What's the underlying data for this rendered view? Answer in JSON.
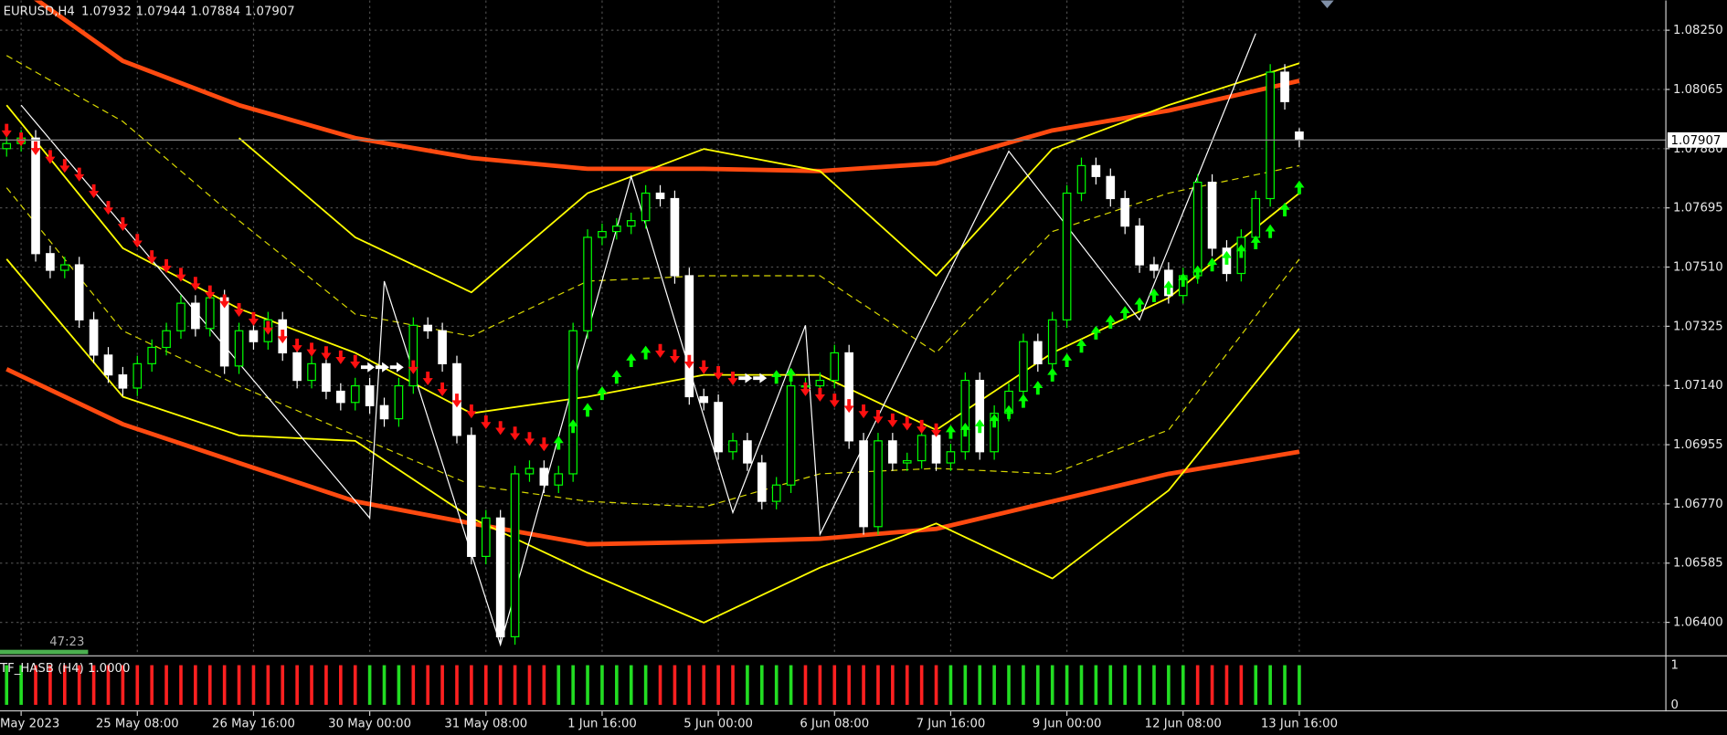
{
  "chart_data": [
    {
      "type": "candlestick",
      "symbol": "EURUSD,H4",
      "countdown": "47:23",
      "up_color": "#00ff00",
      "down_color": "#ffffff",
      "background": "#000000",
      "grid": true,
      "xlim": [
        -0.455,
        114.2
      ],
      "xticks": [
        {
          "value": 1,
          "label": "May 2023"
        },
        {
          "value": 9,
          "label": "25 May 08:00"
        },
        {
          "value": 17,
          "label": "26 May 16:00"
        },
        {
          "value": 25,
          "label": "30 May 00:00"
        },
        {
          "value": 33,
          "label": "31 May 08:00"
        },
        {
          "value": 41,
          "label": "1 Jun 16:00"
        },
        {
          "value": 49,
          "label": "5 Jun 00:00"
        },
        {
          "value": 57,
          "label": "6 Jun 08:00"
        },
        {
          "value": 65,
          "label": "7 Jun 16:00"
        },
        {
          "value": 73,
          "label": "9 Jun 00:00"
        },
        {
          "value": 81,
          "label": "12 Jun 08:00"
        },
        {
          "value": 89,
          "label": "13 Jun 16:00"
        }
      ],
      "ylim": [
        1.06297,
        1.08343
      ],
      "yticks": [
        {
          "value": 1.0825,
          "label": "1.08250"
        },
        1.08065,
        {
          "value": 1.0788,
          "label": "1.07880"
        },
        1.07695,
        {
          "value": 1.0751,
          "label": "1.07510"
        },
        1.07325,
        {
          "value": 1.0714,
          "label": "1.07140"
        },
        1.06955,
        {
          "value": 1.0677,
          "label": "1.06770"
        },
        1.06585,
        {
          "value": 1.064,
          "label": "1.06400"
        }
      ],
      "open": [
        1.0788,
        1.07896,
        1.07913,
        1.07552,
        1.075,
        1.07517,
        1.07345,
        1.07235,
        1.07173,
        1.07132,
        1.07208,
        1.07259,
        1.07311,
        1.07397,
        1.07318,
        1.07414,
        1.07201,
        1.07311,
        1.07277,
        1.07345,
        1.07242,
        1.07156,
        1.07208,
        1.07122,
        1.07087,
        1.07139,
        1.07077,
        1.07036,
        1.07139,
        1.07328,
        1.07311,
        1.07208,
        1.06984,
        1.06606,
        1.06726,
        1.06355,
        1.06864,
        1.06881,
        1.06829,
        1.06864,
        1.07311,
        1.07603,
        1.07621,
        1.07638,
        1.07655,
        1.07741,
        1.07724,
        1.07483,
        1.07105,
        1.07087,
        1.06933,
        1.06967,
        1.06898,
        1.06778,
        1.06829,
        1.07139,
        1.07139,
        1.07156,
        1.07242,
        1.06967,
        1.06699,
        1.06967,
        1.06898,
        1.06905,
        1.06984,
        1.06898,
        1.06933,
        1.07156,
        1.06933,
        1.07053,
        1.07122,
        1.07277,
        1.07208,
        1.07345,
        1.07741,
        1.07827,
        1.07793,
        1.07724,
        1.07638,
        1.07517,
        1.075,
        1.07421,
        1.07483,
        1.07775,
        1.07569,
        1.0749,
        1.07603,
        1.07724,
        1.08119,
        1.07932
      ],
      "high": [
        1.07921,
        1.07938,
        1.07938,
        1.07577,
        1.07542,
        1.07542,
        1.0737,
        1.0726,
        1.07198,
        1.07233,
        1.07284,
        1.07336,
        1.07422,
        1.07422,
        1.07439,
        1.07439,
        1.07336,
        1.07336,
        1.0737,
        1.0737,
        1.07267,
        1.07233,
        1.07233,
        1.07147,
        1.07164,
        1.07164,
        1.07102,
        1.07164,
        1.07353,
        1.07353,
        1.07336,
        1.07233,
        1.07009,
        1.06751,
        1.06751,
        1.06889,
        1.06906,
        1.06906,
        1.06889,
        1.07336,
        1.07628,
        1.07646,
        1.07663,
        1.0768,
        1.07766,
        1.07766,
        1.07749,
        1.07508,
        1.0713,
        1.07112,
        1.06992,
        1.06992,
        1.06923,
        1.06854,
        1.07164,
        1.07164,
        1.07181,
        1.07267,
        1.07267,
        1.06992,
        1.06992,
        1.06992,
        1.0693,
        1.07009,
        1.07009,
        1.06958,
        1.07181,
        1.07181,
        1.07078,
        1.07147,
        1.07302,
        1.07302,
        1.0737,
        1.07766,
        1.07852,
        1.07852,
        1.07818,
        1.07749,
        1.07663,
        1.07542,
        1.07525,
        1.07508,
        1.078,
        1.078,
        1.07594,
        1.07628,
        1.07749,
        1.08144,
        1.08144,
        1.07944
      ],
      "low": [
        1.07855,
        1.07871,
        1.07527,
        1.07475,
        1.07475,
        1.0732,
        1.0721,
        1.07148,
        1.07107,
        1.07107,
        1.07183,
        1.07234,
        1.07286,
        1.07293,
        1.07293,
        1.07176,
        1.07176,
        1.07252,
        1.07252,
        1.07217,
        1.07131,
        1.07131,
        1.07097,
        1.07062,
        1.07062,
        1.07052,
        1.07011,
        1.07011,
        1.07114,
        1.07286,
        1.07183,
        1.06959,
        1.06581,
        1.06581,
        1.0633,
        1.0633,
        1.06839,
        1.06804,
        1.06804,
        1.06839,
        1.07286,
        1.07578,
        1.07596,
        1.07613,
        1.0763,
        1.07699,
        1.07458,
        1.0708,
        1.07062,
        1.06908,
        1.06908,
        1.06873,
        1.06753,
        1.06753,
        1.06804,
        1.07114,
        1.07114,
        1.07131,
        1.06942,
        1.06674,
        1.06674,
        1.06873,
        1.06873,
        1.0688,
        1.06873,
        1.06873,
        1.06908,
        1.06908,
        1.06908,
        1.07028,
        1.07097,
        1.07183,
        1.07183,
        1.0732,
        1.07716,
        1.07768,
        1.07699,
        1.07613,
        1.07492,
        1.07475,
        1.07396,
        1.07396,
        1.07458,
        1.07544,
        1.07465,
        1.07465,
        1.07578,
        1.07699,
        1.08002,
        1.07884
      ],
      "close": [
        1.07896,
        1.07913,
        1.07552,
        1.075,
        1.07517,
        1.07345,
        1.07235,
        1.07173,
        1.07132,
        1.07208,
        1.07259,
        1.07311,
        1.07397,
        1.07318,
        1.07414,
        1.07201,
        1.07311,
        1.07277,
        1.07345,
        1.07242,
        1.07156,
        1.07208,
        1.07122,
        1.07087,
        1.07139,
        1.07077,
        1.07036,
        1.07139,
        1.07328,
        1.07311,
        1.07208,
        1.06984,
        1.06606,
        1.06726,
        1.06355,
        1.06864,
        1.06881,
        1.06829,
        1.06864,
        1.07311,
        1.07603,
        1.07621,
        1.07638,
        1.07655,
        1.07741,
        1.07724,
        1.07483,
        1.07105,
        1.07087,
        1.06933,
        1.06967,
        1.06898,
        1.06778,
        1.06829,
        1.07139,
        1.07139,
        1.07156,
        1.07242,
        1.06967,
        1.06699,
        1.06967,
        1.06898,
        1.06905,
        1.06984,
        1.06898,
        1.06933,
        1.07156,
        1.06933,
        1.07053,
        1.07122,
        1.07277,
        1.07208,
        1.07345,
        1.07741,
        1.07827,
        1.07793,
        1.07724,
        1.07638,
        1.07517,
        1.075,
        1.07421,
        1.07483,
        1.07775,
        1.07569,
        1.0749,
        1.07603,
        1.07724,
        1.08119,
        1.08027,
        1.07907
      ],
      "lines": {
        "x": [
          0,
          8,
          16,
          24,
          32,
          40,
          48,
          56,
          64,
          72,
          80,
          89
        ],
        "series": [
          {
            "color": "#ff4a10",
            "width": 4,
            "dash": false,
            "values": [
              1.08412,
              1.08154,
              1.08016,
              1.07913,
              1.07851,
              1.07817,
              1.07817,
              1.0781,
              1.07834,
              1.07937,
              1.07999,
              1.08092
            ]
          },
          {
            "color": "#ff4a10",
            "width": 4,
            "dash": false,
            "values": [
              1.07191,
              1.07019,
              1.06898,
              1.06778,
              1.06709,
              1.06644,
              1.06651,
              1.06661,
              1.06692,
              1.06778,
              1.06864,
              1.06933
            ]
          },
          {
            "color": "#ffff00",
            "width": 1.5,
            "dash": false,
            "values": [
              null,
              null,
              1.07913,
              1.07603,
              1.07431,
              1.07741,
              1.07879,
              1.0781,
              1.07483,
              1.07879,
              1.08016,
              1.08147
            ]
          },
          {
            "color": "#ffff00",
            "width": 1.5,
            "dash": false,
            "values": [
              1.08016,
              1.07569,
              1.0738,
              1.07242,
              1.07053,
              1.07105,
              1.07173,
              1.07173,
              1.07001,
              1.07242,
              1.07414,
              1.07741
            ]
          },
          {
            "color": "#ffff00",
            "width": 1.5,
            "dash": false,
            "values": [
              1.07535,
              1.07105,
              1.06984,
              1.06967,
              1.06726,
              1.06555,
              1.06399,
              1.06571,
              1.06709,
              1.06537,
              1.06812,
              1.07318
            ]
          },
          {
            "color": "#d8d800",
            "width": 1,
            "dash": true,
            "values": [
              1.08171,
              1.07965,
              1.07655,
              1.07363,
              1.07294,
              1.07466,
              1.07483,
              1.07483,
              1.07242,
              1.07621,
              1.07741,
              1.07827
            ]
          },
          {
            "color": "#d8d800",
            "width": 1,
            "dash": true,
            "values": [
              1.07758,
              1.07311,
              1.07139,
              1.06984,
              1.06829,
              1.06778,
              1.0676,
              1.06864,
              1.06881,
              1.06864,
              1.07001,
              1.07535
            ]
          }
        ]
      },
      "zigzag": {
        "color": "#ffffff",
        "x": [
          1,
          25,
          26,
          34,
          43,
          50,
          55,
          56,
          69,
          78,
          86
        ],
        "values": [
          1.08016,
          1.06726,
          1.07466,
          1.0633,
          1.07793,
          1.06743,
          1.07328,
          1.06675,
          1.07872,
          1.07345,
          1.0824
        ]
      },
      "signal": {
        "colors": {
          "down": "#ff1010",
          "up": "#00ff00",
          "right": "#ffffff"
        },
        "values": [
          1.0793,
          1.07903,
          1.07875,
          1.07848,
          1.0782,
          1.07793,
          1.07741,
          1.07689,
          1.07638,
          1.07586,
          1.07535,
          1.07507,
          1.0748,
          1.07452,
          1.07425,
          1.07397,
          1.0737,
          1.07342,
          1.07314,
          1.07287,
          1.07259,
          1.07246,
          1.07235,
          1.07222,
          1.07208,
          1.07197,
          1.07197,
          1.07197,
          1.07191,
          1.07156,
          1.07122,
          1.07087,
          1.07053,
          1.07019,
          1.07001,
          1.06984,
          1.06967,
          1.0695,
          1.06967,
          1.07019,
          1.0707,
          1.07122,
          1.07173,
          1.07225,
          1.07249,
          1.07242,
          1.07225,
          1.07208,
          1.07191,
          1.07173,
          1.07156,
          1.07163,
          1.07163,
          1.07173,
          1.0718,
          1.07122,
          1.07105,
          1.07087,
          1.0707,
          1.07053,
          1.07036,
          1.07025,
          1.07015,
          1.07005,
          1.06994,
          1.07001,
          1.07008,
          1.07019,
          1.07036,
          1.07063,
          1.07098,
          1.07139,
          1.0718,
          1.07225,
          1.0727,
          1.07311,
          1.07345,
          1.07373,
          1.074,
          1.07428,
          1.07452,
          1.07476,
          1.075,
          1.07524,
          1.07545,
          1.07566,
          1.07593,
          1.07628,
          1.07696,
          1.07765
        ],
        "dir": [
          "down",
          "down",
          "down",
          "down",
          "down",
          "down",
          "down",
          "down",
          "down",
          "down",
          "down",
          "down",
          "down",
          "down",
          "down",
          "down",
          "down",
          "down",
          "down",
          "down",
          "down",
          "down",
          "down",
          "down",
          "down",
          "right",
          "right",
          "right",
          "down",
          "down",
          "down",
          "down",
          "down",
          "down",
          "down",
          "down",
          "down",
          "down",
          "up",
          "up",
          "up",
          "up",
          "up",
          "up",
          "up",
          "down",
          "down",
          "down",
          "down",
          "down",
          "down",
          "right",
          "right",
          "up",
          "up",
          "down",
          "down",
          "down",
          "down",
          "down",
          "down",
          "down",
          "down",
          "down",
          "down",
          "up",
          "up",
          "up",
          "up",
          "up",
          "up",
          "up",
          "up",
          "up",
          "up",
          "up",
          "up",
          "up",
          "up",
          "up",
          "up",
          "up",
          "up",
          "up",
          "up",
          "up",
          "up",
          "up",
          "up",
          "up"
        ]
      }
    },
    {
      "type": "bar",
      "title": "TF_HASB (H4) 1.0000",
      "ylim": [
        0,
        1
      ],
      "yticks": [
        0,
        1
      ],
      "values": [
        1,
        1,
        1,
        1,
        1,
        1,
        1,
        1,
        1,
        1,
        1,
        1,
        1,
        1,
        1,
        1,
        1,
        1,
        1,
        1,
        1,
        1,
        1,
        1,
        1,
        1,
        1,
        1,
        1,
        1,
        1,
        1,
        1,
        1,
        1,
        1,
        1,
        1,
        1,
        1,
        1,
        1,
        1,
        1,
        1,
        1,
        1,
        1,
        1,
        1,
        1,
        1,
        1,
        1,
        1,
        1,
        1,
        1,
        1,
        1,
        1,
        1,
        1,
        1,
        1,
        1,
        1,
        1,
        1,
        1,
        1,
        1,
        1,
        1,
        1,
        1,
        1,
        1,
        1,
        1,
        1,
        1,
        1,
        1,
        1,
        1,
        1,
        1,
        1,
        1
      ],
      "colors": [
        "#22dd22",
        "#22dd22",
        "#ff2020",
        "#ff2020",
        "#ff2020",
        "#ff2020",
        "#ff2020",
        "#ff2020",
        "#ff2020",
        "#ff2020",
        "#ff2020",
        "#ff2020",
        "#ff2020",
        "#ff2020",
        "#ff2020",
        "#ff2020",
        "#ff2020",
        "#ff2020",
        "#ff2020",
        "#ff2020",
        "#ff2020",
        "#ff2020",
        "#ff2020",
        "#ff2020",
        "#ff2020",
        "#22dd22",
        "#22dd22",
        "#22dd22",
        "#ff2020",
        "#ff2020",
        "#ff2020",
        "#ff2020",
        "#ff2020",
        "#ff2020",
        "#ff2020",
        "#ff2020",
        "#ff2020",
        "#ff2020",
        "#22dd22",
        "#22dd22",
        "#22dd22",
        "#22dd22",
        "#22dd22",
        "#22dd22",
        "#22dd22",
        "#ff2020",
        "#ff2020",
        "#ff2020",
        "#ff2020",
        "#ff2020",
        "#ff2020",
        "#22dd22",
        "#22dd22",
        "#22dd22",
        "#22dd22",
        "#ff2020",
        "#ff2020",
        "#ff2020",
        "#ff2020",
        "#ff2020",
        "#ff2020",
        "#ff2020",
        "#ff2020",
        "#ff2020",
        "#ff2020",
        "#22dd22",
        "#22dd22",
        "#22dd22",
        "#22dd22",
        "#22dd22",
        "#22dd22",
        "#22dd22",
        "#22dd22",
        "#22dd22",
        "#22dd22",
        "#22dd22",
        "#22dd22",
        "#22dd22",
        "#22dd22",
        "#22dd22",
        "#22dd22",
        "#22dd22",
        "#ff2020",
        "#ff2020",
        "#ff2020",
        "#ff2020",
        "#22dd22",
        "#22dd22",
        "#22dd22",
        "#22dd22"
      ]
    }
  ]
}
